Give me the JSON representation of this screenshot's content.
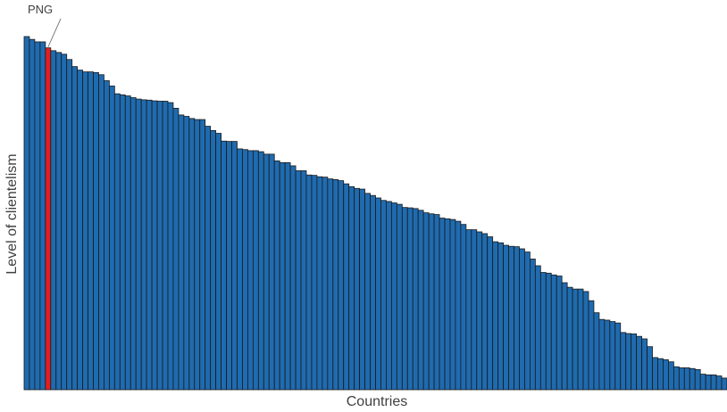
{
  "chart_data": {
    "type": "bar",
    "title": "",
    "xlabel": "Countries",
    "ylabel": "Level of clientelism",
    "ylim": [
      0,
      100
    ],
    "grid": false,
    "legend": "none",
    "bar_color": "#1f6bb0",
    "highlight_color": "#e02020",
    "highlight_index": 4,
    "annotation": {
      "text": "PNG",
      "index": 4
    },
    "values": [
      100,
      99.2,
      98.5,
      98.5,
      96.8,
      96,
      95.5,
      95,
      93.5,
      91.5,
      90.5,
      90,
      90,
      89.8,
      89.2,
      87.5,
      86,
      83.8,
      83.5,
      83.2,
      82.7,
      82.3,
      82.1,
      82,
      81.8,
      81.7,
      81.7,
      81.3,
      79.7,
      77.8,
      77.4,
      76.8,
      76.5,
      76.5,
      74.6,
      73.4,
      72.6,
      70.4,
      70.3,
      70.3,
      68.2,
      68,
      67.7,
      67.7,
      67.4,
      66.7,
      66.7,
      64.8,
      64.3,
      64.3,
      63.4,
      62,
      62,
      60.8,
      60.7,
      60.3,
      60.2,
      59.7,
      59.5,
      59.2,
      58.3,
      57.5,
      57,
      56.8,
      55.6,
      55,
      54.3,
      53.6,
      53.3,
      52.9,
      52.5,
      51.6,
      51.5,
      51.3,
      50.8,
      50.1,
      49.8,
      49.6,
      48.6,
      48.4,
      48.2,
      47.7,
      46.8,
      45.3,
      45.3,
      44.7,
      44.2,
      43.3,
      41.9,
      41.6,
      40.9,
      40.6,
      40.5,
      39.9,
      39,
      37,
      35.1,
      33.2,
      33,
      32.5,
      32.2,
      30.3,
      29,
      28.5,
      28.5,
      27.8,
      25.2,
      21.8,
      19.9,
      19.7,
      19.3,
      18.9,
      16.2,
      15.9,
      15.8,
      15.1,
      14.4,
      12.2,
      9.1,
      8.8,
      8.5,
      7.9,
      6.5,
      6.2,
      6.2,
      6,
      5.7,
      4.4,
      4.2,
      4.2,
      3.9,
      3.3
    ]
  }
}
